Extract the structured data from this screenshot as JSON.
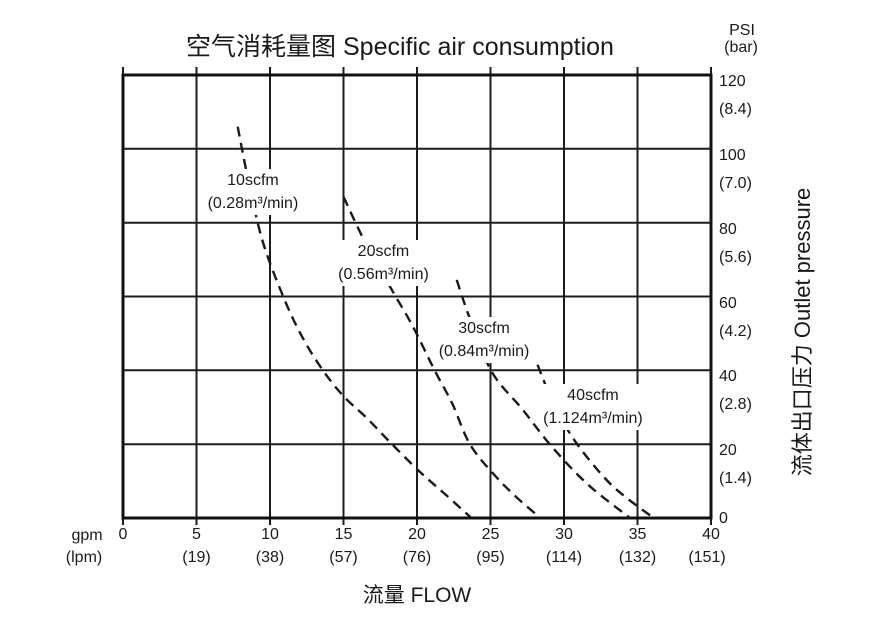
{
  "chart_data": {
    "type": "line",
    "title": "空气消耗量图 Specific air consumption",
    "y_unit_primary": "PSI",
    "y_unit_secondary": "(bar)",
    "x_unit_primary": "gpm",
    "x_unit_secondary": "(lpm)",
    "xlabel": "流量 FLOW",
    "ylabel": "流体出口压力 Outlet pressure",
    "xlim": [
      0,
      40
    ],
    "ylim": [
      0,
      120
    ],
    "grid": true,
    "line_style": "dashed",
    "x_ticks": [
      {
        "gpm": 0,
        "label": "0",
        "lpm_label": ""
      },
      {
        "gpm": 5,
        "label": "5",
        "lpm_label": "(19)"
      },
      {
        "gpm": 10,
        "label": "10",
        "lpm_label": "(38)"
      },
      {
        "gpm": 15,
        "label": "15",
        "lpm_label": "(57)"
      },
      {
        "gpm": 20,
        "label": "20",
        "lpm_label": "(76)"
      },
      {
        "gpm": 25,
        "label": "25",
        "lpm_label": "(95)"
      },
      {
        "gpm": 30,
        "label": "30",
        "lpm_label": "(114)"
      },
      {
        "gpm": 35,
        "label": "35",
        "lpm_label": "(132)"
      },
      {
        "gpm": 40,
        "label": "40",
        "lpm_label": "(151)"
      }
    ],
    "y_ticks": [
      {
        "psi": 120,
        "label": "120",
        "bar_label": "(8.4)"
      },
      {
        "psi": 100,
        "label": "100",
        "bar_label": "(7.0)"
      },
      {
        "psi": 80,
        "label": "80",
        "bar_label": "(5.6)"
      },
      {
        "psi": 60,
        "label": "60",
        "bar_label": "(4.2)"
      },
      {
        "psi": 40,
        "label": "40",
        "bar_label": "(2.8)"
      },
      {
        "psi": 20,
        "label": "20",
        "bar_label": "(1.4)"
      },
      {
        "psi": 0,
        "label": "0",
        "bar_label": ""
      }
    ],
    "series": [
      {
        "name": "10scfm",
        "alt_label": "(0.28m³/min)",
        "label_anchor_gpm_psi": [
          8.84,
          88.2
        ],
        "points_gpm_psi": [
          [
            7.8,
            106
          ],
          [
            8.5,
            92
          ],
          [
            9.5,
            75
          ],
          [
            10.9,
            60
          ],
          [
            12.2,
            49
          ],
          [
            13.6,
            40
          ],
          [
            15.0,
            33
          ],
          [
            16.6,
            27
          ],
          [
            18.3,
            20
          ],
          [
            20.2,
            12.5
          ],
          [
            21.9,
            6.5
          ],
          [
            23.7,
            0
          ]
        ]
      },
      {
        "name": "20scfm",
        "alt_label": "(0.56m³/min)",
        "label_anchor_gpm_psi": [
          17.72,
          69.1
        ],
        "points_gpm_psi": [
          [
            15.0,
            87
          ],
          [
            16.5,
            74.5
          ],
          [
            18.4,
            61
          ],
          [
            19.7,
            52
          ],
          [
            21.2,
            40
          ],
          [
            22.4,
            31
          ],
          [
            23.6,
            20
          ],
          [
            25.3,
            11.5
          ],
          [
            26.8,
            5.5
          ],
          [
            28.4,
            0
          ]
        ]
      },
      {
        "name": "30scfm",
        "alt_label": "(0.84m³/min)",
        "label_anchor_gpm_psi": [
          24.56,
          48.2
        ],
        "points_gpm_psi": [
          [
            22.7,
            64.5
          ],
          [
            23.6,
            54
          ],
          [
            25.1,
            39.5
          ],
          [
            27.2,
            29.3
          ],
          [
            29.2,
            19.2
          ],
          [
            31.7,
            8.8
          ],
          [
            34.5,
            0
          ]
        ]
      },
      {
        "name": "40scfm",
        "alt_label": "(1.124m³/min)",
        "label_anchor_gpm_psi": [
          31.97,
          30.1
        ],
        "points_gpm_psi": [
          [
            28.2,
            41.5
          ],
          [
            29.4,
            30
          ],
          [
            30.9,
            20
          ],
          [
            32.9,
            10.3
          ],
          [
            34.4,
            5
          ],
          [
            36.1,
            0
          ]
        ]
      }
    ],
    "colors": {
      "line": "#1a1a1a",
      "grid": "#1c1c1c",
      "background": "#ffffff"
    }
  }
}
